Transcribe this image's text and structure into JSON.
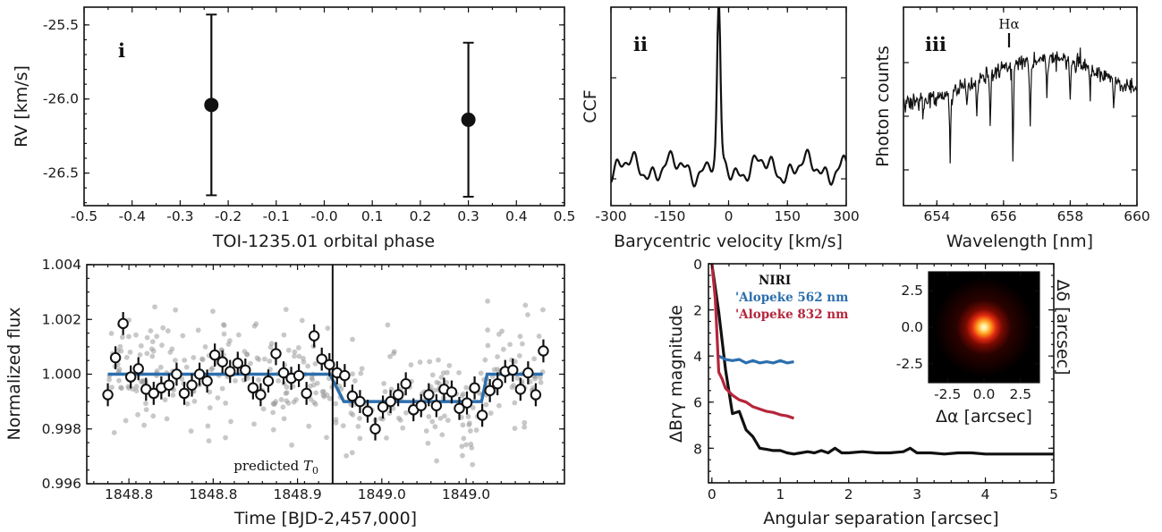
{
  "chart_data": [
    {
      "type": "scatter",
      "panel": "i",
      "xlabel": "TOI-1235.01 orbital phase",
      "ylabel": "RV [km/s]",
      "xlim": [
        -0.5,
        0.5
      ],
      "ylim": [
        -26.72,
        -25.38
      ],
      "xticks": [
        "-0.5",
        "-0.4",
        "-0.3",
        "-0.2",
        "-0.1",
        "-0.0",
        "0.1",
        "0.2",
        "0.3",
        "0.4",
        "0.5"
      ],
      "yticks": [
        "-25.5",
        "-26.0",
        "-26.5"
      ],
      "series": [
        {
          "points": [
            {
              "x": -0.235,
              "y": -26.04,
              "err": 0.61
            },
            {
              "x": 0.3,
              "y": -26.14,
              "err": 0.52
            }
          ]
        }
      ]
    },
    {
      "type": "line",
      "panel": "ii",
      "xlabel": "Barycentric velocity [km/s]",
      "ylabel": "CCF",
      "xlim": [
        -300,
        300
      ],
      "xticks": [
        "-300",
        "-150",
        "0",
        "150",
        "300"
      ]
    },
    {
      "type": "line",
      "panel": "iii",
      "xlabel": "Wavelength [nm]",
      "ylabel": "Photon counts",
      "xlim": [
        653,
        660
      ],
      "xticks": [
        "654",
        "656",
        "658",
        "660"
      ],
      "annotation": "Hα",
      "annotation_x": 656.3
    },
    {
      "type": "scatter",
      "xlabel": "Time [BJD-2,457,000]",
      "ylabel": "Normalized flux",
      "xlim": [
        1848.76,
        1849.1
      ],
      "ylim": [
        0.996,
        1.004
      ],
      "xticks": [
        "1848.8",
        "1848.8",
        "1848.9",
        "1849.0",
        "1849.0"
      ],
      "yticks": [
        "1.004",
        "1.002",
        "1.000",
        "0.998",
        "0.996"
      ],
      "vline_x": 1848.935,
      "vline_label": "predicted T0",
      "model_color": "#2c6fad",
      "binned_values": [
        0.99925,
        1.0006,
        1.00185,
        0.9999,
        1.0002,
        0.99945,
        0.9993,
        0.9995,
        0.9996,
        1.0,
        0.9993,
        0.9996,
        1.0,
        0.99975,
        1.0007,
        1.00045,
        1.0001,
        1.0004,
        1.00015,
        0.9995,
        0.99925,
        0.99975,
        1.00075,
        1.00005,
        0.99985,
        0.99995,
        0.9993,
        1.0014,
        1.00055,
        1.00035,
        1.00005,
        0.99995,
        0.9992,
        0.999,
        0.99865,
        0.998,
        0.9988,
        0.999,
        0.99925,
        0.99965,
        0.9987,
        0.99885,
        0.99925,
        0.99885,
        0.99945,
        0.99935,
        0.99875,
        0.99895,
        0.9995,
        0.9985,
        0.9994,
        0.99965,
        1.0001,
        1.00015,
        0.99945,
        1.00005,
        0.99925,
        1.00085
      ]
    },
    {
      "type": "line",
      "xlabel": "Angular separation [arcsec]",
      "ylabel": "ΔBrγ magnitude",
      "xlim": [
        -0.05,
        5
      ],
      "ylim": [
        0,
        9.5
      ],
      "xticks": [
        "0",
        "1",
        "2",
        "3",
        "4",
        "5"
      ],
      "yticks": [
        "0",
        "2",
        "4",
        "6",
        "8"
      ],
      "series": [
        {
          "name": "NIRI",
          "color": "#111111",
          "x": [
            0.0,
            0.1,
            0.2,
            0.3,
            0.4,
            0.5,
            0.6,
            0.7,
            0.8,
            0.9,
            1.0,
            1.1,
            1.2,
            1.3,
            1.4,
            1.5,
            1.6,
            1.7,
            1.8,
            1.9,
            2.0,
            2.2,
            2.4,
            2.6,
            2.8,
            2.9,
            3.0,
            3.2,
            3.4,
            3.6,
            3.8,
            4.0,
            4.5,
            5.0
          ],
          "y": [
            0.0,
            2.1,
            4.6,
            6.5,
            6.4,
            7.2,
            7.5,
            8.0,
            8.05,
            8.1,
            8.1,
            8.2,
            8.25,
            8.2,
            8.15,
            8.2,
            8.1,
            8.2,
            8.0,
            8.2,
            8.2,
            8.15,
            8.2,
            8.2,
            8.15,
            8.0,
            8.2,
            8.2,
            8.25,
            8.2,
            8.2,
            8.25,
            8.25,
            8.25
          ]
        },
        {
          "name": "'Alopeke 562 nm",
          "color": "#2c6fad",
          "x": [
            0.1,
            0.2,
            0.3,
            0.4,
            0.5,
            0.6,
            0.7,
            0.8,
            0.9,
            1.0,
            1.1,
            1.2
          ],
          "y": [
            4.0,
            4.15,
            4.2,
            4.15,
            4.3,
            4.2,
            4.3,
            4.25,
            4.3,
            4.2,
            4.3,
            4.25
          ]
        },
        {
          "name": "'Alopeke 832 nm",
          "color": "#b5263b",
          "x": [
            0.0,
            0.05,
            0.1,
            0.15,
            0.2,
            0.3,
            0.4,
            0.5,
            0.6,
            0.7,
            0.8,
            0.9,
            1.0,
            1.1,
            1.2
          ],
          "y": [
            0.0,
            1.5,
            4.7,
            5.0,
            5.4,
            5.7,
            5.9,
            6.0,
            6.2,
            6.3,
            6.4,
            6.45,
            6.55,
            6.6,
            6.7
          ]
        }
      ],
      "inset": {
        "xlabel": "Δα [arcsec]",
        "ylabel": "Δδ [arcsec]",
        "xticks": [
          "-2.5",
          "0.0",
          "2.5"
        ],
        "yticks": [
          "2.5",
          "0.0",
          "-2.5"
        ]
      }
    }
  ]
}
